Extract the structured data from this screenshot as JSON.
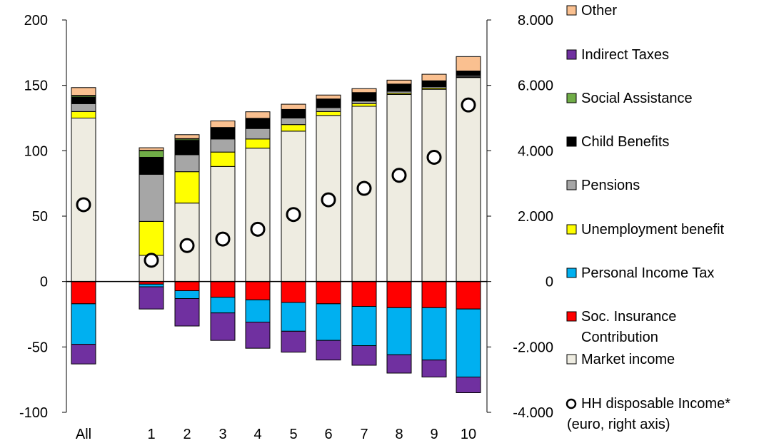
{
  "chart_data": {
    "type": "bar",
    "stacked": true,
    "categories": [
      "All",
      "1",
      "2",
      "3",
      "4",
      "5",
      "6",
      "7",
      "8",
      "9",
      "10"
    ],
    "left_axis": {
      "ylim": [
        -100,
        200
      ],
      "ticks": [
        200,
        150,
        100,
        50,
        0,
        -50,
        -100
      ],
      "tick_labels": [
        "200",
        "150",
        "100",
        "50",
        "0",
        "-50",
        "-100"
      ]
    },
    "right_axis": {
      "ylim": [
        -4000,
        8000
      ],
      "ticks": [
        8000,
        6000,
        4000,
        2000,
        0,
        -2000,
        -4000
      ],
      "tick_labels": [
        "8.000",
        "6.000",
        "4.000",
        "2.000",
        "0",
        "-2.000",
        "-4.000"
      ]
    },
    "positive_series": [
      {
        "name": "Market income",
        "color": "#eeece1",
        "values": [
          125,
          20,
          60,
          88,
          102,
          115,
          127,
          134,
          143,
          147,
          156
        ]
      },
      {
        "name": "Unemployment benefit",
        "color": "#ffff00",
        "values": [
          5,
          26,
          24,
          11,
          7,
          5,
          3,
          2,
          1,
          1,
          0.5
        ]
      },
      {
        "name": "Pensions",
        "color": "#a6a6a6",
        "values": [
          6,
          36,
          13,
          10,
          8,
          5,
          3,
          2,
          1.5,
          1,
          1
        ]
      },
      {
        "name": "Child Benefits",
        "color": "#000000",
        "values": [
          5,
          13,
          11,
          8,
          7,
          6,
          6,
          6,
          5,
          4,
          3
        ]
      },
      {
        "name": "Social Assistance",
        "color": "#70ad47",
        "values": [
          1,
          5,
          1,
          0.5,
          0.5,
          0.3,
          0.3,
          0.2,
          0.2,
          0.2,
          0.2
        ]
      },
      {
        "name": "Indirect Taxes",
        "color": "#7030a0",
        "values": [
          0.3,
          0.3,
          0.3,
          0.3,
          0.3,
          0.3,
          0.3,
          0.3,
          0.3,
          0.3,
          0.3
        ]
      },
      {
        "name": "Other",
        "color": "#fac090",
        "values": [
          6,
          2,
          3,
          5,
          5,
          4,
          3,
          3,
          3,
          5,
          11
        ]
      }
    ],
    "negative_series": [
      {
        "name": "Soc. Insurance Contribution",
        "color": "#ff0000",
        "values": [
          -17,
          -2,
          -7,
          -12,
          -14,
          -16,
          -17,
          -19,
          -20,
          -20,
          -21
        ]
      },
      {
        "name": "Personal Income Tax",
        "color": "#00b0f0",
        "values": [
          -31,
          -2,
          -6,
          -12,
          -17,
          -22,
          -28,
          -30,
          -36,
          -40,
          -52
        ]
      },
      {
        "name": "Indirect Taxes",
        "color": "#7030a0",
        "values": [
          -15,
          -17,
          -21,
          -21,
          -20,
          -16,
          -15,
          -15,
          -14,
          -13,
          -12
        ]
      }
    ],
    "markers": {
      "name": "HH disposable Income* (euro, right axis)",
      "values": [
        2350,
        650,
        1100,
        1300,
        1600,
        2050,
        2500,
        2850,
        3250,
        3800,
        5400
      ]
    },
    "legend": {
      "placement": "right",
      "entries": [
        {
          "label": "Other",
          "color": "#fac090",
          "kind": "box"
        },
        {
          "label": "Indirect Taxes",
          "color": "#7030a0",
          "kind": "box"
        },
        {
          "label": "Social Assistance",
          "color": "#70ad47",
          "kind": "box"
        },
        {
          "label": "Child Benefits",
          "color": "#000000",
          "kind": "box"
        },
        {
          "label": "Pensions",
          "color": "#a6a6a6",
          "kind": "box"
        },
        {
          "label": "Unemployment benefit",
          "color": "#ffff00",
          "kind": "box"
        },
        {
          "label": "Personal Income Tax",
          "color": "#00b0f0",
          "kind": "box"
        },
        {
          "label": "Soc. Insurance",
          "label2": "Contribution",
          "color": "#ff0000",
          "kind": "box"
        },
        {
          "label": "Market income",
          "color": "#eeece1",
          "kind": "box"
        },
        {
          "label": "HH disposable Income*",
          "label2": "(euro, right axis)",
          "color": "#ffffff",
          "kind": "circle"
        }
      ]
    }
  }
}
